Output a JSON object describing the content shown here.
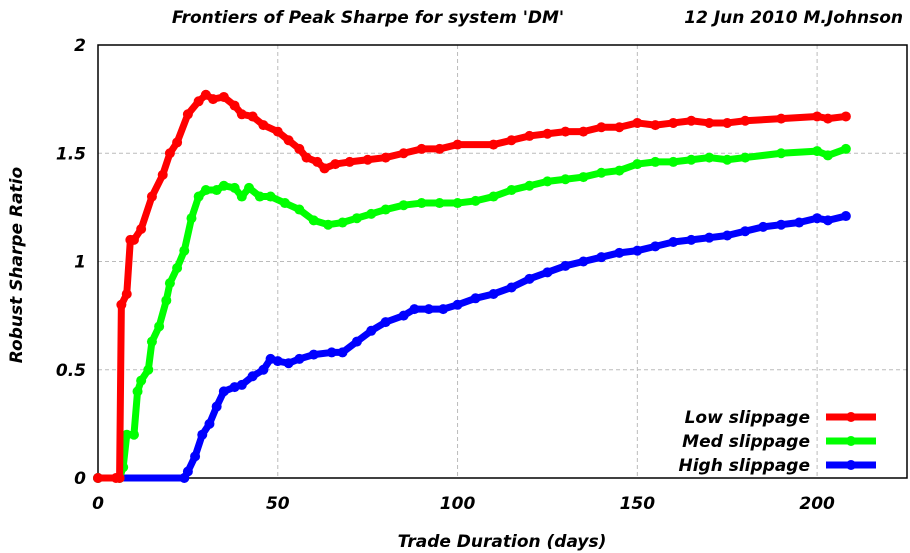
{
  "chart_data": {
    "type": "line",
    "title": "Frontiers of Peak Sharpe for system 'DM'",
    "subtitle": "12 Jun 2010 M.Johnson",
    "xlabel": "Trade Duration (days)",
    "ylabel": "Robust Sharpe Ratio",
    "xlim": [
      0,
      225
    ],
    "ylim": [
      0,
      2
    ],
    "xticks": [
      "0",
      "50",
      "100",
      "150",
      "200"
    ],
    "yticks": [
      "0",
      "0.5",
      "1",
      "1.5",
      "2"
    ],
    "grid": true,
    "legend_position": "bottom-right",
    "series": [
      {
        "name": "Low slippage",
        "color": "#ff0000",
        "x": [
          0,
          5,
          6,
          6.5,
          8,
          9,
          10,
          12,
          15,
          18,
          20,
          22,
          25,
          28,
          30,
          32,
          35,
          38,
          40,
          43,
          46,
          50,
          53,
          56,
          58,
          61,
          63,
          66,
          70,
          75,
          80,
          85,
          90,
          95,
          100,
          110,
          115,
          120,
          125,
          130,
          135,
          140,
          145,
          150,
          155,
          160,
          165,
          170,
          175,
          180,
          190,
          200,
          203,
          208
        ],
        "y": [
          0,
          0,
          0,
          0.8,
          0.85,
          1.1,
          1.1,
          1.15,
          1.3,
          1.4,
          1.5,
          1.55,
          1.68,
          1.74,
          1.77,
          1.75,
          1.76,
          1.72,
          1.68,
          1.67,
          1.63,
          1.6,
          1.56,
          1.52,
          1.48,
          1.46,
          1.43,
          1.45,
          1.46,
          1.47,
          1.48,
          1.5,
          1.52,
          1.52,
          1.54,
          1.54,
          1.56,
          1.58,
          1.59,
          1.6,
          1.6,
          1.62,
          1.62,
          1.64,
          1.63,
          1.64,
          1.65,
          1.64,
          1.64,
          1.65,
          1.66,
          1.67,
          1.66,
          1.67
        ]
      },
      {
        "name": "Med slippage",
        "color": "#00ff00",
        "x": [
          0,
          6,
          7,
          8,
          10,
          11,
          12,
          14,
          15,
          17,
          19,
          20,
          22,
          24,
          26,
          28,
          30,
          33,
          35,
          38,
          40,
          42,
          45,
          48,
          52,
          56,
          60,
          64,
          68,
          72,
          76,
          80,
          85,
          90,
          95,
          100,
          105,
          110,
          115,
          120,
          125,
          130,
          135,
          140,
          145,
          150,
          155,
          160,
          165,
          170,
          175,
          180,
          190,
          200,
          203,
          208
        ],
        "y": [
          0,
          0,
          0.05,
          0.2,
          0.2,
          0.4,
          0.45,
          0.5,
          0.63,
          0.7,
          0.82,
          0.9,
          0.97,
          1.05,
          1.2,
          1.3,
          1.33,
          1.33,
          1.35,
          1.34,
          1.3,
          1.34,
          1.3,
          1.3,
          1.27,
          1.24,
          1.19,
          1.17,
          1.18,
          1.2,
          1.22,
          1.24,
          1.26,
          1.27,
          1.27,
          1.27,
          1.28,
          1.3,
          1.33,
          1.35,
          1.37,
          1.38,
          1.39,
          1.41,
          1.42,
          1.45,
          1.46,
          1.46,
          1.47,
          1.48,
          1.47,
          1.48,
          1.5,
          1.51,
          1.49,
          1.52
        ]
      },
      {
        "name": "High slippage",
        "color": "#0000ff",
        "x": [
          0,
          24,
          25,
          27,
          29,
          31,
          33,
          35,
          38,
          40,
          43,
          46,
          48,
          50,
          53,
          56,
          60,
          65,
          68,
          72,
          76,
          80,
          85,
          88,
          92,
          96,
          100,
          105,
          110,
          115,
          120,
          125,
          130,
          135,
          140,
          145,
          150,
          155,
          160,
          165,
          170,
          175,
          180,
          185,
          190,
          195,
          200,
          203,
          208
        ],
        "y": [
          0,
          0,
          0.03,
          0.1,
          0.2,
          0.25,
          0.33,
          0.4,
          0.42,
          0.43,
          0.47,
          0.5,
          0.55,
          0.54,
          0.53,
          0.55,
          0.57,
          0.58,
          0.58,
          0.63,
          0.68,
          0.72,
          0.75,
          0.78,
          0.78,
          0.78,
          0.8,
          0.83,
          0.85,
          0.88,
          0.92,
          0.95,
          0.98,
          1.0,
          1.02,
          1.04,
          1.05,
          1.07,
          1.09,
          1.1,
          1.11,
          1.12,
          1.14,
          1.16,
          1.17,
          1.18,
          1.2,
          1.19,
          1.21
        ]
      }
    ]
  }
}
